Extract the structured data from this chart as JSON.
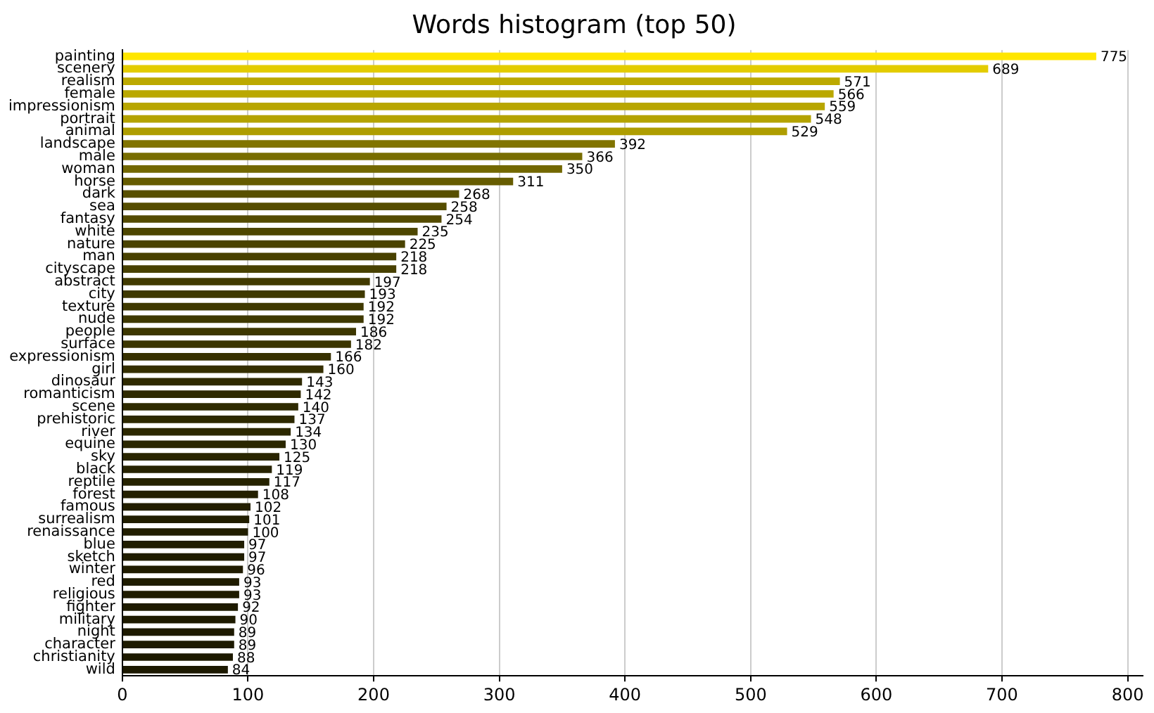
{
  "chart_data": {
    "type": "bar",
    "orientation": "horizontal",
    "title": "Words histogram (top 50)",
    "categories": [
      "painting",
      "scenery",
      "realism",
      "female",
      "impressionism",
      "portrait",
      "animal",
      "landscape",
      "male",
      "woman",
      "horse",
      "dark",
      "sea",
      "fantasy",
      "white",
      "nature",
      "man",
      "cityscape",
      "abstract",
      "city",
      "texture",
      "nude",
      "people",
      "surface",
      "expressionism",
      "girl",
      "dinosaur",
      "romanticism",
      "scene",
      "prehistoric",
      "river",
      "equine",
      "sky",
      "black",
      "reptile",
      "forest",
      "famous",
      "surrealism",
      "renaissance",
      "blue",
      "sketch",
      "winter",
      "red",
      "religious",
      "fighter",
      "military",
      "night",
      "character",
      "christianity",
      "wild"
    ],
    "values": [
      775,
      689,
      571,
      566,
      559,
      548,
      529,
      392,
      366,
      350,
      311,
      268,
      258,
      254,
      235,
      225,
      218,
      218,
      197,
      193,
      192,
      192,
      186,
      182,
      166,
      160,
      143,
      142,
      140,
      137,
      134,
      130,
      125,
      119,
      117,
      108,
      102,
      101,
      100,
      97,
      97,
      96,
      93,
      93,
      92,
      90,
      89,
      89,
      88,
      84
    ],
    "colors": [
      "#ffe600",
      "#e3cc00",
      "#bca900",
      "#baa800",
      "#b8a600",
      "#b4a300",
      "#ae9d00",
      "#817400",
      "#786d00",
      "#736800",
      "#665c00",
      "#585000",
      "#554d00",
      "#544b00",
      "#4d4600",
      "#4a4300",
      "#484100",
      "#484100",
      "#413a00",
      "#3f3900",
      "#3f3900",
      "#3f3900",
      "#3d3700",
      "#3c3600",
      "#373100",
      "#352f00",
      "#2f2a00",
      "#2f2a00",
      "#2e2a00",
      "#2d2900",
      "#2c2800",
      "#2b2700",
      "#292500",
      "#272300",
      "#262300",
      "#242000",
      "#221e00",
      "#211e00",
      "#211e00",
      "#201d00",
      "#201d00",
      "#201c00",
      "#1f1c00",
      "#1f1c00",
      "#1e1b00",
      "#1e1b00",
      "#1d1a00",
      "#1d1a00",
      "#1d1a00",
      "#1c1900"
    ],
    "xlim": [
      0,
      812
    ],
    "xticks": [
      0,
      100,
      200,
      300,
      400,
      500,
      600,
      700,
      800
    ],
    "grid": "x",
    "data_labels": true
  }
}
